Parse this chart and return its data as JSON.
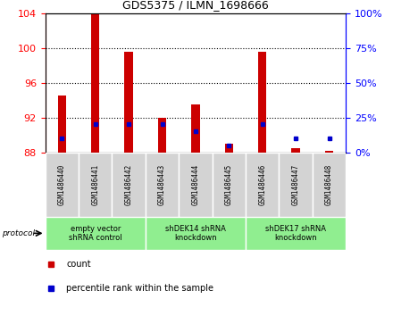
{
  "title": "GDS5375 / ILMN_1698666",
  "samples": [
    "GSM1486440",
    "GSM1486441",
    "GSM1486442",
    "GSM1486443",
    "GSM1486444",
    "GSM1486445",
    "GSM1486446",
    "GSM1486447",
    "GSM1486448"
  ],
  "count_values": [
    94.5,
    104.0,
    99.5,
    92.0,
    93.5,
    89.0,
    99.5,
    88.5,
    88.2
  ],
  "percentile_values": [
    10,
    20,
    20,
    20,
    15,
    5,
    20,
    10,
    10
  ],
  "ylim_left": [
    88,
    104
  ],
  "ylim_right": [
    0,
    100
  ],
  "yticks_left": [
    88,
    92,
    96,
    100,
    104
  ],
  "yticks_right": [
    0,
    25,
    50,
    75,
    100
  ],
  "bar_bottom": 88,
  "bar_color": "#cc0000",
  "percentile_color": "#0000cc",
  "protocol_groups": [
    {
      "label": "empty vector\nshRNA control",
      "start": 0,
      "end": 3,
      "color": "#90ee90"
    },
    {
      "label": "shDEK14 shRNA\nknockdown",
      "start": 3,
      "end": 6,
      "color": "#90ee90"
    },
    {
      "label": "shDEK17 shRNA\nknockdown",
      "start": 6,
      "end": 9,
      "color": "#90ee90"
    }
  ],
  "legend_items": [
    {
      "label": "count",
      "color": "#cc0000"
    },
    {
      "label": "percentile rank within the sample",
      "color": "#0000cc"
    }
  ]
}
